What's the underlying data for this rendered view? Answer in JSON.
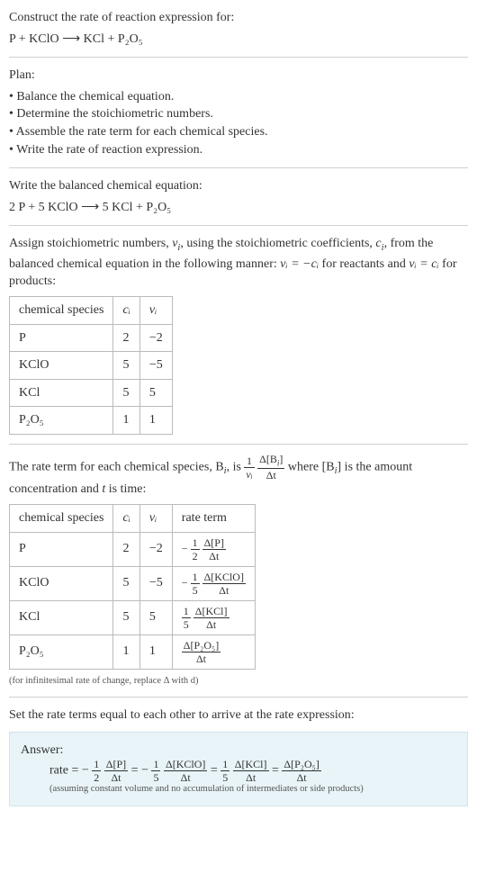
{
  "prompt": "Construct the rate of reaction expression for:",
  "unbalanced_equation": "P + KClO ⟶ KCl + P₂O₅",
  "plan": {
    "title": "Plan:",
    "items": [
      "Balance the chemical equation.",
      "Determine the stoichiometric numbers.",
      "Assemble the rate term for each chemical species.",
      "Write the rate of reaction expression."
    ]
  },
  "balanced_heading": "Write the balanced chemical equation:",
  "balanced_equation": "2 P + 5 KClO ⟶ 5 KCl + P₂O₅",
  "stoich_text_1": "Assign stoichiometric numbers, ",
  "stoich_text_2": ", using the stoichiometric coefficients, ",
  "stoich_text_3": ", from the balanced chemical equation in the following manner: ",
  "stoich_text_4": " for reactants and ",
  "stoich_text_5": " for products:",
  "table1": {
    "headers": [
      "chemical species",
      "cᵢ",
      "νᵢ"
    ],
    "rows": [
      [
        "P",
        "2",
        "−2"
      ],
      [
        "KClO",
        "5",
        "−5"
      ],
      [
        "KCl",
        "5",
        "5"
      ],
      [
        "P₂O₅",
        "1",
        "1"
      ]
    ]
  },
  "rate_text_1": "The rate term for each chemical species, B",
  "rate_text_2": ", is ",
  "rate_text_3": " where [B",
  "rate_text_4": "] is the amount concentration and ",
  "rate_text_5": " is time:",
  "table2": {
    "headers": [
      "chemical species",
      "cᵢ",
      "νᵢ",
      "rate term"
    ],
    "rows": [
      {
        "species": "P",
        "c": "2",
        "v": "−2",
        "sign": "−",
        "n": "1",
        "d": "2",
        "conc": "Δ[P]"
      },
      {
        "species": "KClO",
        "c": "5",
        "v": "−5",
        "sign": "−",
        "n": "1",
        "d": "5",
        "conc": "Δ[KClO]"
      },
      {
        "species": "KCl",
        "c": "5",
        "v": "5",
        "sign": "",
        "n": "1",
        "d": "5",
        "conc": "Δ[KCl]"
      },
      {
        "species": "P₂O₅",
        "c": "1",
        "v": "1",
        "sign": "",
        "n": "",
        "d": "",
        "conc": "Δ[P₂O₅]"
      }
    ]
  },
  "infinitesimal_note": "(for infinitesimal rate of change, replace Δ with d)",
  "final_heading": "Set the rate terms equal to each other to arrive at the rate expression:",
  "answer_label": "Answer:",
  "rate_prefix": "rate = ",
  "answer_note": "(assuming constant volume and no accumulation of intermediates or side products)",
  "delta_t": "Δt",
  "nu_i_html": "νᵢ",
  "c_i_html": "cᵢ",
  "i_sub": "i",
  "t_var": "t",
  "eq_react": "νᵢ = −cᵢ",
  "eq_prod": "νᵢ = cᵢ"
}
